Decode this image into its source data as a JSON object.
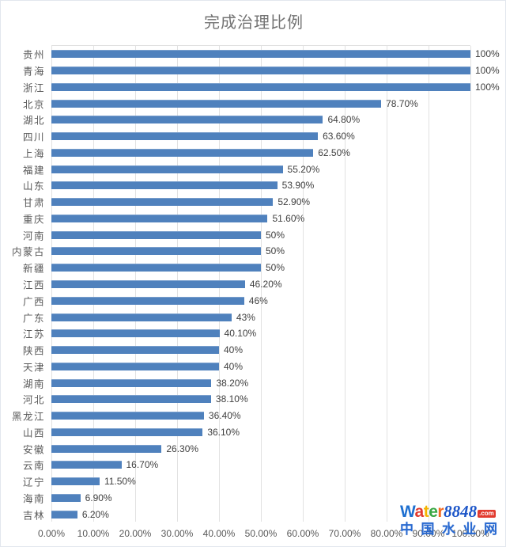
{
  "chart_data": {
    "type": "bar",
    "orientation": "horizontal",
    "title": "完成治理比例",
    "categories": [
      "贵州",
      "青海",
      "浙江",
      "北京",
      "湖北",
      "四川",
      "上海",
      "福建",
      "山东",
      "甘肃",
      "重庆",
      "河南",
      "内蒙古",
      "新疆",
      "江西",
      "广西",
      "广东",
      "江苏",
      "陕西",
      "天津",
      "湖南",
      "河北",
      "黑龙江",
      "山西",
      "安徽",
      "云南",
      "辽宁",
      "海南",
      "吉林"
    ],
    "values": [
      100,
      100,
      100,
      78.7,
      64.8,
      63.6,
      62.5,
      55.2,
      53.9,
      52.9,
      51.6,
      50,
      50,
      50,
      46.2,
      46,
      43,
      40.1,
      40,
      40,
      38.2,
      38.1,
      36.4,
      36.1,
      26.3,
      16.7,
      11.5,
      6.9,
      6.2
    ],
    "value_labels": [
      "100%",
      "100%",
      "100%",
      "78.70%",
      "64.80%",
      "63.60%",
      "62.50%",
      "55.20%",
      "53.90%",
      "52.90%",
      "51.60%",
      "50%",
      "50%",
      "50%",
      "46.20%",
      "46%",
      "43%",
      "40.10%",
      "40%",
      "40%",
      "38.20%",
      "38.10%",
      "36.40%",
      "36.10%",
      "26.30%",
      "16.70%",
      "11.50%",
      "6.90%",
      "6.20%"
    ],
    "x_ticks": [
      "0.00%",
      "10.00%",
      "20.00%",
      "30.00%",
      "40.00%",
      "50.00%",
      "60.00%",
      "70.00%",
      "80.00%",
      "90.00%",
      "100.00%"
    ],
    "xlim": [
      0,
      100
    ],
    "grid": true,
    "legend": false,
    "bar_color": "#4f81bd"
  },
  "watermark": {
    "brand_letters": [
      {
        "ch": "W",
        "color": "#1e6fd0"
      },
      {
        "ch": "a",
        "color": "#e23a2e"
      },
      {
        "ch": "t",
        "color": "#f4b400"
      },
      {
        "ch": "e",
        "color": "#3aa845"
      },
      {
        "ch": "r",
        "color": "#f26a21"
      }
    ],
    "number": "8848",
    "tld": ".com",
    "subtitle": "中国水业网"
  },
  "colors": {
    "bar": "#4f81bd",
    "gridline": "#e2e2e2",
    "title_text": "#737373",
    "category_text": "#595959",
    "value_text": "#404040",
    "axis_text": "#595959"
  }
}
